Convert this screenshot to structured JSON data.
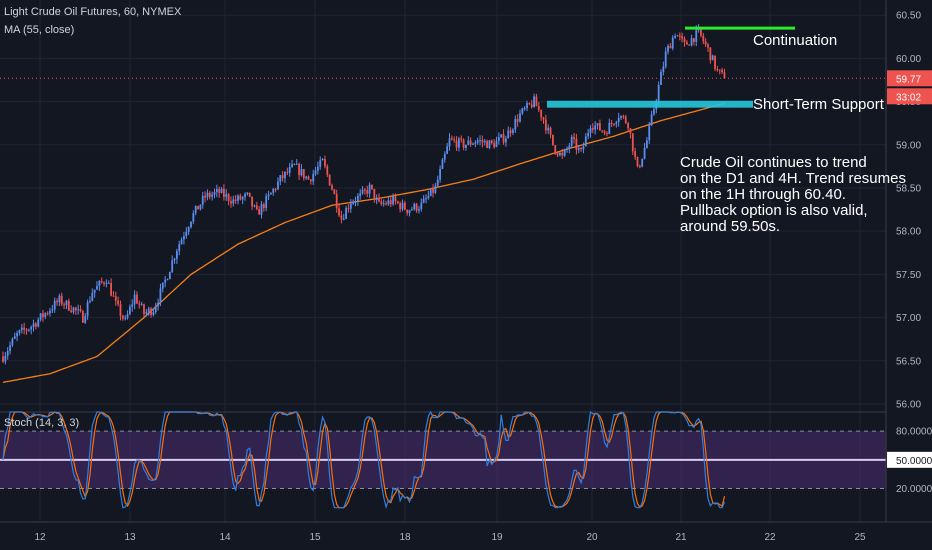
{
  "header": {
    "symbol": "Light Crude Oil Futures, 60, NYMEX",
    "ma_label": "MA (55, close)",
    "stoch_label": "Stoch (14, 3, 3)"
  },
  "price_badges": {
    "last_price": "59.77",
    "countdown": "33:02"
  },
  "annotations": {
    "continuation": "Continuation",
    "support": "Short-Term Support",
    "note_lines": [
      "Crude Oil continues to trend",
      "on the D1 and 4H. Trend resumes",
      "on the 1H through 60.40.",
      "Pullback option is also valid,",
      "around 59.50s."
    ]
  },
  "colors": {
    "background": "#131722",
    "up_candle": "#5b8ef0",
    "down_candle": "#ef5350",
    "ma_line": "#f57f17",
    "support_box": "#26c6da",
    "continuation_line": "#2ee82e",
    "stoch_fill": "#4a2d72",
    "stoch_k": "#2f7fe0",
    "stoch_d": "#ff6d00"
  },
  "chart_data": {
    "type": "candlestick",
    "price_axis": {
      "ticks": [
        56.0,
        56.5,
        57.0,
        57.5,
        58.0,
        58.5,
        59.0,
        59.5,
        60.0,
        60.5
      ],
      "tick_labels": [
        "56.00",
        "56.50",
        "57.00",
        "57.50",
        "58.00",
        "58.50",
        "59.00",
        "59.50",
        "60.00",
        "60.50"
      ],
      "range": [
        55.93,
        60.63
      ]
    },
    "time_axis": {
      "labels": [
        "12",
        "13",
        "14",
        "15",
        "18",
        "19",
        "20",
        "21",
        "22",
        "25"
      ]
    },
    "price_path": [
      [
        0,
        56.55
      ],
      [
        6,
        56.8
      ],
      [
        12,
        56.9
      ],
      [
        18,
        57.05
      ],
      [
        24,
        57.2
      ],
      [
        30,
        57.1
      ],
      [
        34,
        57.0
      ],
      [
        38,
        57.3
      ],
      [
        44,
        57.45
      ],
      [
        48,
        57.15
      ],
      [
        52,
        56.95
      ],
      [
        56,
        57.25
      ],
      [
        60,
        57.05
      ],
      [
        64,
        57.1
      ],
      [
        68,
        57.35
      ],
      [
        74,
        57.8
      ],
      [
        80,
        58.15
      ],
      [
        86,
        58.4
      ],
      [
        92,
        58.45
      ],
      [
        98,
        58.35
      ],
      [
        104,
        58.4
      ],
      [
        108,
        58.2
      ],
      [
        112,
        58.35
      ],
      [
        118,
        58.6
      ],
      [
        124,
        58.75
      ],
      [
        130,
        58.6
      ],
      [
        136,
        58.8
      ],
      [
        140,
        58.5
      ],
      [
        144,
        58.15
      ],
      [
        148,
        58.35
      ],
      [
        152,
        58.4
      ],
      [
        156,
        58.5
      ],
      [
        160,
        58.3
      ],
      [
        166,
        58.35
      ],
      [
        172,
        58.25
      ],
      [
        178,
        58.3
      ],
      [
        184,
        58.5
      ],
      [
        190,
        59.05
      ],
      [
        196,
        59.0
      ],
      [
        202,
        59.05
      ],
      [
        208,
        59.0
      ],
      [
        214,
        59.1
      ],
      [
        220,
        59.35
      ],
      [
        226,
        59.5
      ],
      [
        230,
        59.3
      ],
      [
        234,
        59.0
      ],
      [
        238,
        58.85
      ],
      [
        242,
        59.05
      ],
      [
        246,
        58.9
      ],
      [
        250,
        59.25
      ],
      [
        256,
        59.15
      ],
      [
        262,
        59.35
      ],
      [
        266,
        59.25
      ],
      [
        270,
        58.7
      ],
      [
        274,
        59.05
      ],
      [
        278,
        59.55
      ],
      [
        282,
        60.05
      ],
      [
        286,
        60.3
      ],
      [
        290,
        60.15
      ],
      [
        296,
        60.3
      ],
      [
        300,
        60.1
      ],
      [
        304,
        59.85
      ],
      [
        307,
        59.77
      ]
    ],
    "ma_path": [
      [
        0,
        56.25
      ],
      [
        20,
        56.35
      ],
      [
        40,
        56.55
      ],
      [
        60,
        57.0
      ],
      [
        80,
        57.5
      ],
      [
        100,
        57.85
      ],
      [
        120,
        58.1
      ],
      [
        140,
        58.3
      ],
      [
        160,
        58.38
      ],
      [
        180,
        58.48
      ],
      [
        200,
        58.6
      ],
      [
        220,
        58.78
      ],
      [
        240,
        58.95
      ],
      [
        260,
        59.1
      ],
      [
        280,
        59.28
      ],
      [
        307,
        59.48
      ]
    ],
    "continuation_level": 60.35,
    "support_level": [
      59.43,
      59.51
    ],
    "last_price": 59.77,
    "stochastic": {
      "levels": [
        20,
        50,
        80
      ],
      "level_labels": [
        "20.0000",
        "50.0000",
        "80.0000"
      ],
      "k_last": 6,
      "d_last": 12
    }
  }
}
